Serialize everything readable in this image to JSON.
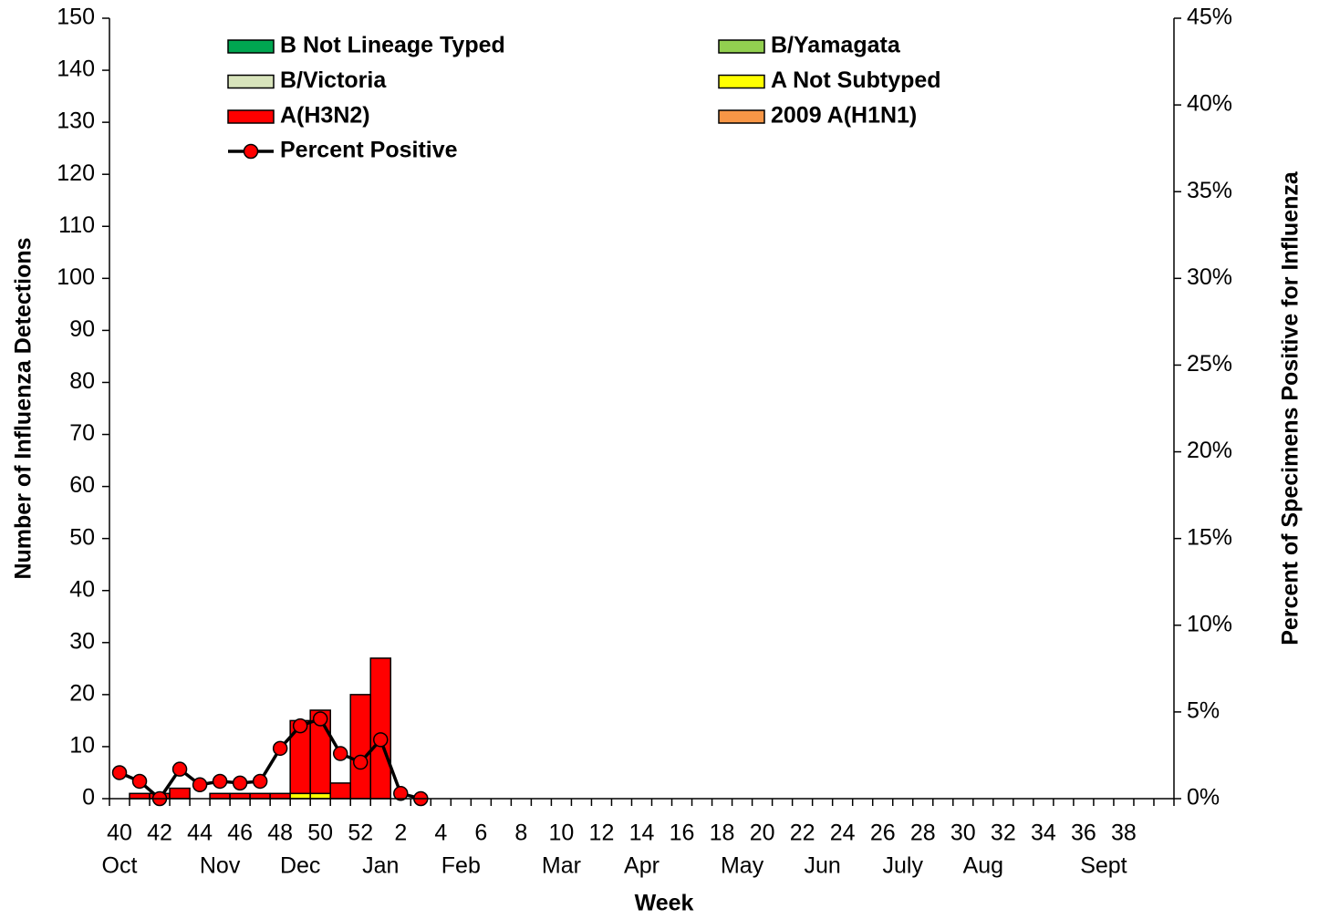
{
  "chart_data": {
    "type": "bar",
    "categories": [
      "40",
      null,
      "42",
      null,
      "44",
      null,
      "46",
      null,
      "48",
      null,
      "50",
      null,
      "52",
      null,
      "2",
      null,
      "4",
      null,
      "6",
      null,
      "8",
      null,
      "10",
      null,
      "12",
      null,
      "14",
      null,
      "16",
      null,
      "18",
      null,
      "20",
      null,
      "22",
      null,
      "24",
      null,
      "26",
      null,
      "28",
      null,
      "30",
      null,
      "32",
      null,
      "34",
      null,
      "36",
      null,
      "38",
      null,
      null
    ],
    "months": [
      "Oct",
      null,
      null,
      null,
      null,
      "Nov",
      null,
      null,
      null,
      "Dec",
      null,
      null,
      null,
      "Jan",
      null,
      null,
      null,
      "Feb",
      null,
      null,
      null,
      null,
      "Mar",
      null,
      null,
      null,
      "Apr",
      null,
      null,
      null,
      null,
      "May",
      null,
      null,
      null,
      "Jun",
      null,
      null,
      null,
      "July",
      null,
      null,
      null,
      "Aug",
      null,
      null,
      null,
      null,
      null,
      "Sept",
      null,
      null,
      null
    ],
    "x_label": "Week",
    "y_label": "Number of Influenza Detections",
    "y2_label": "Percent of Specimens Positive for Influenza",
    "ylim": [
      0,
      150
    ],
    "yticks": [
      0,
      10,
      20,
      30,
      40,
      50,
      60,
      70,
      80,
      90,
      100,
      110,
      120,
      130,
      140,
      150
    ],
    "y2lim": [
      0,
      45
    ],
    "y2ticks": [
      {
        "value": 0,
        "label": "0%"
      },
      {
        "value": 5,
        "label": "5%"
      },
      {
        "value": 10,
        "label": "10%"
      },
      {
        "value": 15,
        "label": "15%"
      },
      {
        "value": 20,
        "label": "20%"
      },
      {
        "value": 25,
        "label": "25%"
      },
      {
        "value": 30,
        "label": "30%"
      },
      {
        "value": 35,
        "label": "35%"
      },
      {
        "value": 40,
        "label": "40%"
      },
      {
        "value": 45,
        "label": "45%"
      }
    ],
    "series": [
      {
        "name": "B Not Lineage Typed",
        "color": "#00a651",
        "values": [
          0,
          0,
          0,
          0,
          0,
          0,
          0,
          0,
          0,
          0,
          0,
          0,
          0,
          0,
          0,
          0,
          null,
          null,
          null,
          null,
          null,
          null,
          null,
          null,
          null,
          null,
          null,
          null,
          null,
          null,
          null,
          null,
          null,
          null,
          null,
          null,
          null,
          null,
          null,
          null,
          null,
          null,
          null,
          null,
          null,
          null,
          null,
          null,
          null,
          null,
          null,
          null,
          null
        ]
      },
      {
        "name": "B/Yamagata",
        "color": "#92d050",
        "values": [
          0,
          0,
          0,
          0,
          0,
          0,
          0,
          0,
          0,
          0,
          0,
          0,
          0,
          0,
          0,
          0,
          null,
          null,
          null,
          null,
          null,
          null,
          null,
          null,
          null,
          null,
          null,
          null,
          null,
          null,
          null,
          null,
          null,
          null,
          null,
          null,
          null,
          null,
          null,
          null,
          null,
          null,
          null,
          null,
          null,
          null,
          null,
          null,
          null,
          null,
          null,
          null,
          null
        ]
      },
      {
        "name": "B/Victoria",
        "color": "#d8e4bc",
        "values": [
          0,
          0,
          0,
          0,
          0,
          0,
          0,
          0,
          0,
          0,
          0,
          0,
          0,
          0,
          0,
          0,
          null,
          null,
          null,
          null,
          null,
          null,
          null,
          null,
          null,
          null,
          null,
          null,
          null,
          null,
          null,
          null,
          null,
          null,
          null,
          null,
          null,
          null,
          null,
          null,
          null,
          null,
          null,
          null,
          null,
          null,
          null,
          null,
          null,
          null,
          null,
          null,
          null
        ]
      },
      {
        "name": "A Not Subtyped",
        "color": "#ffff00",
        "values": [
          0,
          0,
          0,
          0,
          0,
          0,
          0,
          0,
          0,
          1,
          1,
          0,
          0,
          0,
          0,
          0,
          null,
          null,
          null,
          null,
          null,
          null,
          null,
          null,
          null,
          null,
          null,
          null,
          null,
          null,
          null,
          null,
          null,
          null,
          null,
          null,
          null,
          null,
          null,
          null,
          null,
          null,
          null,
          null,
          null,
          null,
          null,
          null,
          null,
          null,
          null,
          null,
          null
        ]
      },
      {
        "name": "A(H3N2)",
        "color": "#ff0000",
        "values": [
          0,
          1,
          1,
          2,
          0,
          1,
          1,
          1,
          1,
          14,
          16,
          3,
          20,
          27,
          0,
          0,
          null,
          null,
          null,
          null,
          null,
          null,
          null,
          null,
          null,
          null,
          null,
          null,
          null,
          null,
          null,
          null,
          null,
          null,
          null,
          null,
          null,
          null,
          null,
          null,
          null,
          null,
          null,
          null,
          null,
          null,
          null,
          null,
          null,
          null,
          null,
          null,
          null
        ]
      },
      {
        "name": "2009 A(H1N1)",
        "color": "#f79646",
        "values": [
          0,
          0,
          0,
          0,
          0,
          0,
          0,
          0,
          0,
          0,
          0,
          0,
          0,
          0,
          0,
          0,
          null,
          null,
          null,
          null,
          null,
          null,
          null,
          null,
          null,
          null,
          null,
          null,
          null,
          null,
          null,
          null,
          null,
          null,
          null,
          null,
          null,
          null,
          null,
          null,
          null,
          null,
          null,
          null,
          null,
          null,
          null,
          null,
          null,
          null,
          null,
          null,
          null
        ]
      },
      {
        "name": "Percent Positive",
        "type": "line",
        "axis": "y2",
        "color": "#000000",
        "marker_color": "#ff0000",
        "values": [
          1.5,
          1.0,
          0,
          1.7,
          0.8,
          1.0,
          0.9,
          1.0,
          2.9,
          4.2,
          4.6,
          2.6,
          2.1,
          3.4,
          0.3,
          0,
          null,
          null,
          null,
          null,
          null,
          null,
          null,
          null,
          null,
          null,
          null,
          null,
          null,
          null,
          null,
          null,
          null,
          null,
          null,
          null,
          null,
          null,
          null,
          null,
          null,
          null,
          null,
          null,
          null,
          null,
          null,
          null,
          null,
          null,
          null,
          null,
          null
        ]
      }
    ]
  }
}
